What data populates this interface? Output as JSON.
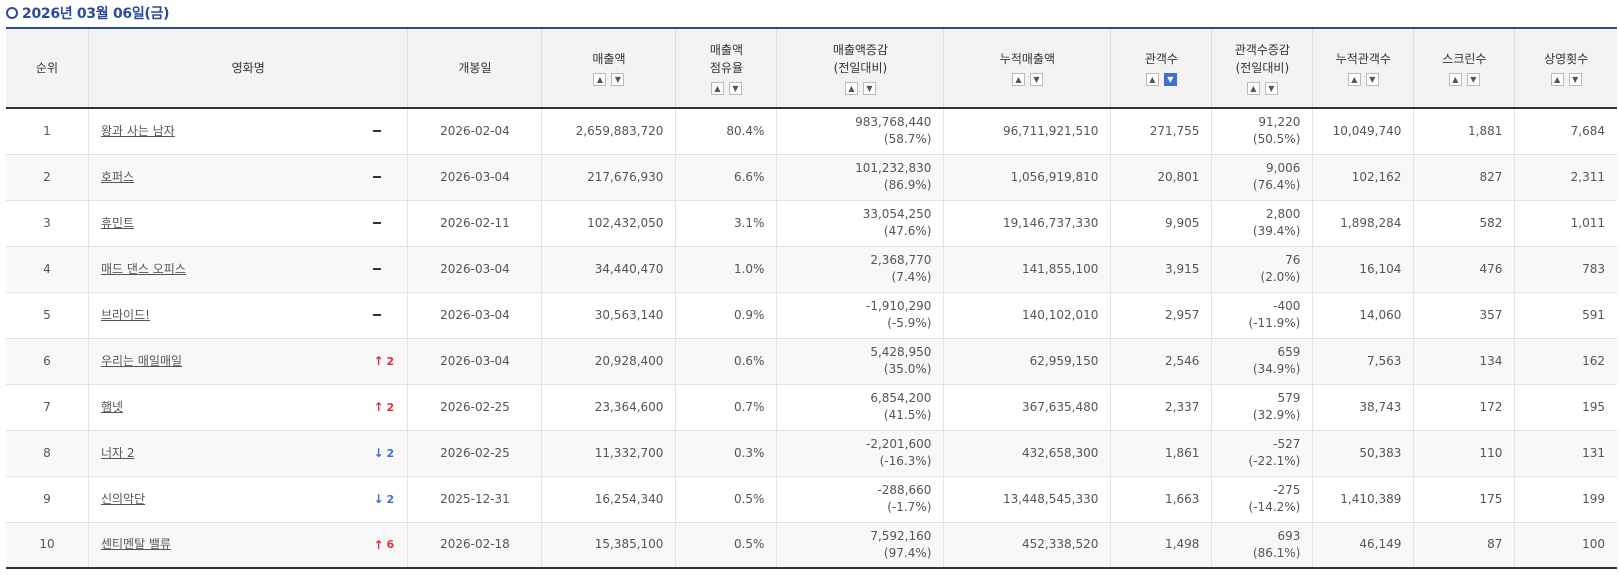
{
  "header": {
    "date": "2026년 03월 06일(금)"
  },
  "columns": {
    "rank": "순위",
    "title": "영화명",
    "release": "개봉일",
    "sales": "매출액",
    "share_line1": "매출액",
    "share_line2": "점유율",
    "sales_change_line1": "매출액증감",
    "sales_change_line2": "(전일대비)",
    "cum_sales": "누적매출액",
    "audience": "관객수",
    "aud_change_line1": "관객수증감",
    "aud_change_line2": "(전일대비)",
    "cum_audience": "누적관객수",
    "screens": "스크린수",
    "shows": "상영횟수"
  },
  "sort_icons": {
    "asc": "sort-up-icon",
    "desc": "sort-down-icon",
    "active": "audience-desc"
  },
  "colors": {
    "accent": "#2b4a9a",
    "up": "#e0303a",
    "down": "#3d6fd1",
    "active_sort": "#3f6fd0"
  },
  "rows": [
    {
      "rank": "1",
      "title": "왕과 사는 남자",
      "change_dir": "same",
      "change_val": "",
      "release": "2026-02-04",
      "sales": "2,659,883,720",
      "share": "80.4%",
      "sales_diff": "983,768,440",
      "sales_diff_pct": "(58.7%)",
      "cum_sales": "96,711,921,510",
      "audience": "271,755",
      "aud_diff": "91,220",
      "aud_diff_pct": "(50.5%)",
      "cum_audience": "10,049,740",
      "screens": "1,881",
      "shows": "7,684"
    },
    {
      "rank": "2",
      "title": "호퍼스",
      "change_dir": "same",
      "change_val": "",
      "release": "2026-03-04",
      "sales": "217,676,930",
      "share": "6.6%",
      "sales_diff": "101,232,830",
      "sales_diff_pct": "(86.9%)",
      "cum_sales": "1,056,919,810",
      "audience": "20,801",
      "aud_diff": "9,006",
      "aud_diff_pct": "(76.4%)",
      "cum_audience": "102,162",
      "screens": "827",
      "shows": "2,311"
    },
    {
      "rank": "3",
      "title": "휴민트",
      "change_dir": "same",
      "change_val": "",
      "release": "2026-02-11",
      "sales": "102,432,050",
      "share": "3.1%",
      "sales_diff": "33,054,250",
      "sales_diff_pct": "(47.6%)",
      "cum_sales": "19,146,737,330",
      "audience": "9,905",
      "aud_diff": "2,800",
      "aud_diff_pct": "(39.4%)",
      "cum_audience": "1,898,284",
      "screens": "582",
      "shows": "1,011"
    },
    {
      "rank": "4",
      "title": "매드 댄스 오피스",
      "change_dir": "same",
      "change_val": "",
      "release": "2026-03-04",
      "sales": "34,440,470",
      "share": "1.0%",
      "sales_diff": "2,368,770",
      "sales_diff_pct": "(7.4%)",
      "cum_sales": "141,855,100",
      "audience": "3,915",
      "aud_diff": "76",
      "aud_diff_pct": "(2.0%)",
      "cum_audience": "16,104",
      "screens": "476",
      "shows": "783"
    },
    {
      "rank": "5",
      "title": "브라이드!",
      "change_dir": "same",
      "change_val": "",
      "release": "2026-03-04",
      "sales": "30,563,140",
      "share": "0.9%",
      "sales_diff": "-1,910,290",
      "sales_diff_pct": "(-5.9%)",
      "cum_sales": "140,102,010",
      "audience": "2,957",
      "aud_diff": "-400",
      "aud_diff_pct": "(-11.9%)",
      "cum_audience": "14,060",
      "screens": "357",
      "shows": "591"
    },
    {
      "rank": "6",
      "title": "우리는 매일매일",
      "change_dir": "up",
      "change_val": "2",
      "release": "2026-03-04",
      "sales": "20,928,400",
      "share": "0.6%",
      "sales_diff": "5,428,950",
      "sales_diff_pct": "(35.0%)",
      "cum_sales": "62,959,150",
      "audience": "2,546",
      "aud_diff": "659",
      "aud_diff_pct": "(34.9%)",
      "cum_audience": "7,563",
      "screens": "134",
      "shows": "162"
    },
    {
      "rank": "7",
      "title": "햄넷",
      "change_dir": "up",
      "change_val": "2",
      "release": "2026-02-25",
      "sales": "23,364,600",
      "share": "0.7%",
      "sales_diff": "6,854,200",
      "sales_diff_pct": "(41.5%)",
      "cum_sales": "367,635,480",
      "audience": "2,337",
      "aud_diff": "579",
      "aud_diff_pct": "(32.9%)",
      "cum_audience": "38,743",
      "screens": "172",
      "shows": "195"
    },
    {
      "rank": "8",
      "title": "너자 2",
      "change_dir": "down",
      "change_val": "2",
      "release": "2026-02-25",
      "sales": "11,332,700",
      "share": "0.3%",
      "sales_diff": "-2,201,600",
      "sales_diff_pct": "(-16.3%)",
      "cum_sales": "432,658,300",
      "audience": "1,861",
      "aud_diff": "-527",
      "aud_diff_pct": "(-22.1%)",
      "cum_audience": "50,383",
      "screens": "110",
      "shows": "131"
    },
    {
      "rank": "9",
      "title": "신의악단",
      "change_dir": "down",
      "change_val": "2",
      "release": "2025-12-31",
      "sales": "16,254,340",
      "share": "0.5%",
      "sales_diff": "-288,660",
      "sales_diff_pct": "(-1.7%)",
      "cum_sales": "13,448,545,330",
      "audience": "1,663",
      "aud_diff": "-275",
      "aud_diff_pct": "(-14.2%)",
      "cum_audience": "1,410,389",
      "screens": "175",
      "shows": "199"
    },
    {
      "rank": "10",
      "title": "센티멘탈 밸류",
      "change_dir": "up",
      "change_val": "6",
      "release": "2026-02-18",
      "sales": "15,385,100",
      "share": "0.5%",
      "sales_diff": "7,592,160",
      "sales_diff_pct": "(97.4%)",
      "cum_sales": "452,338,520",
      "audience": "1,498",
      "aud_diff": "693",
      "aud_diff_pct": "(86.1%)",
      "cum_audience": "46,149",
      "screens": "87",
      "shows": "100"
    }
  ]
}
